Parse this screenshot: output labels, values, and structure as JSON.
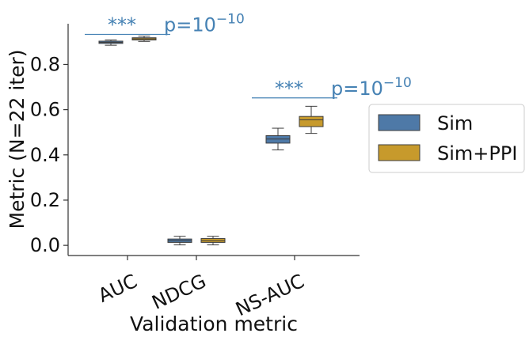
{
  "chart_data": {
    "type": "box",
    "xlabel": "Validation metric",
    "ylabel": "Metric (N=22 iter)",
    "ylim": [
      -0.045,
      0.98
    ],
    "yticks": [
      0.0,
      0.2,
      0.4,
      0.6,
      0.8
    ],
    "ytick_labels": [
      "0.0",
      "0.2",
      "0.4",
      "0.6",
      "0.8"
    ],
    "categories": [
      "AUC",
      "NDCG",
      "NS-AUC"
    ],
    "series": [
      {
        "name": "Sim",
        "color": "#4e79a7",
        "boxes": [
          {
            "whisker_low": 0.885,
            "q1": 0.893,
            "median": 0.898,
            "q3": 0.903,
            "whisker_high": 0.908
          },
          {
            "whisker_low": 0.002,
            "q1": 0.013,
            "median": 0.02,
            "q3": 0.028,
            "whisker_high": 0.04
          },
          {
            "whisker_low": 0.422,
            "q1": 0.452,
            "median": 0.47,
            "q3": 0.485,
            "whisker_high": 0.518
          }
        ]
      },
      {
        "name": "Sim+PPI",
        "color": "#c79a2c",
        "boxes": [
          {
            "whisker_low": 0.902,
            "q1": 0.908,
            "median": 0.913,
            "q3": 0.918,
            "whisker_high": 0.925
          },
          {
            "whisker_low": 0.002,
            "q1": 0.013,
            "median": 0.02,
            "q3": 0.03,
            "whisker_high": 0.04
          },
          {
            "whisker_low": 0.495,
            "q1": 0.525,
            "median": 0.555,
            "q3": 0.57,
            "whisker_high": 0.615
          }
        ]
      }
    ],
    "annotations": [
      {
        "category": "AUC",
        "y": 0.933,
        "stars": "***",
        "pvalue_base": "p=10",
        "pvalue_exp": "−10"
      },
      {
        "category": "NS-AUC",
        "y": 0.652,
        "stars": "***",
        "pvalue_base": "p=10",
        "pvalue_exp": "−10"
      }
    ],
    "annotation_color": "#4682b4",
    "legend": {
      "placement": "right",
      "entries": [
        "Sim",
        "Sim+PPI"
      ]
    }
  }
}
